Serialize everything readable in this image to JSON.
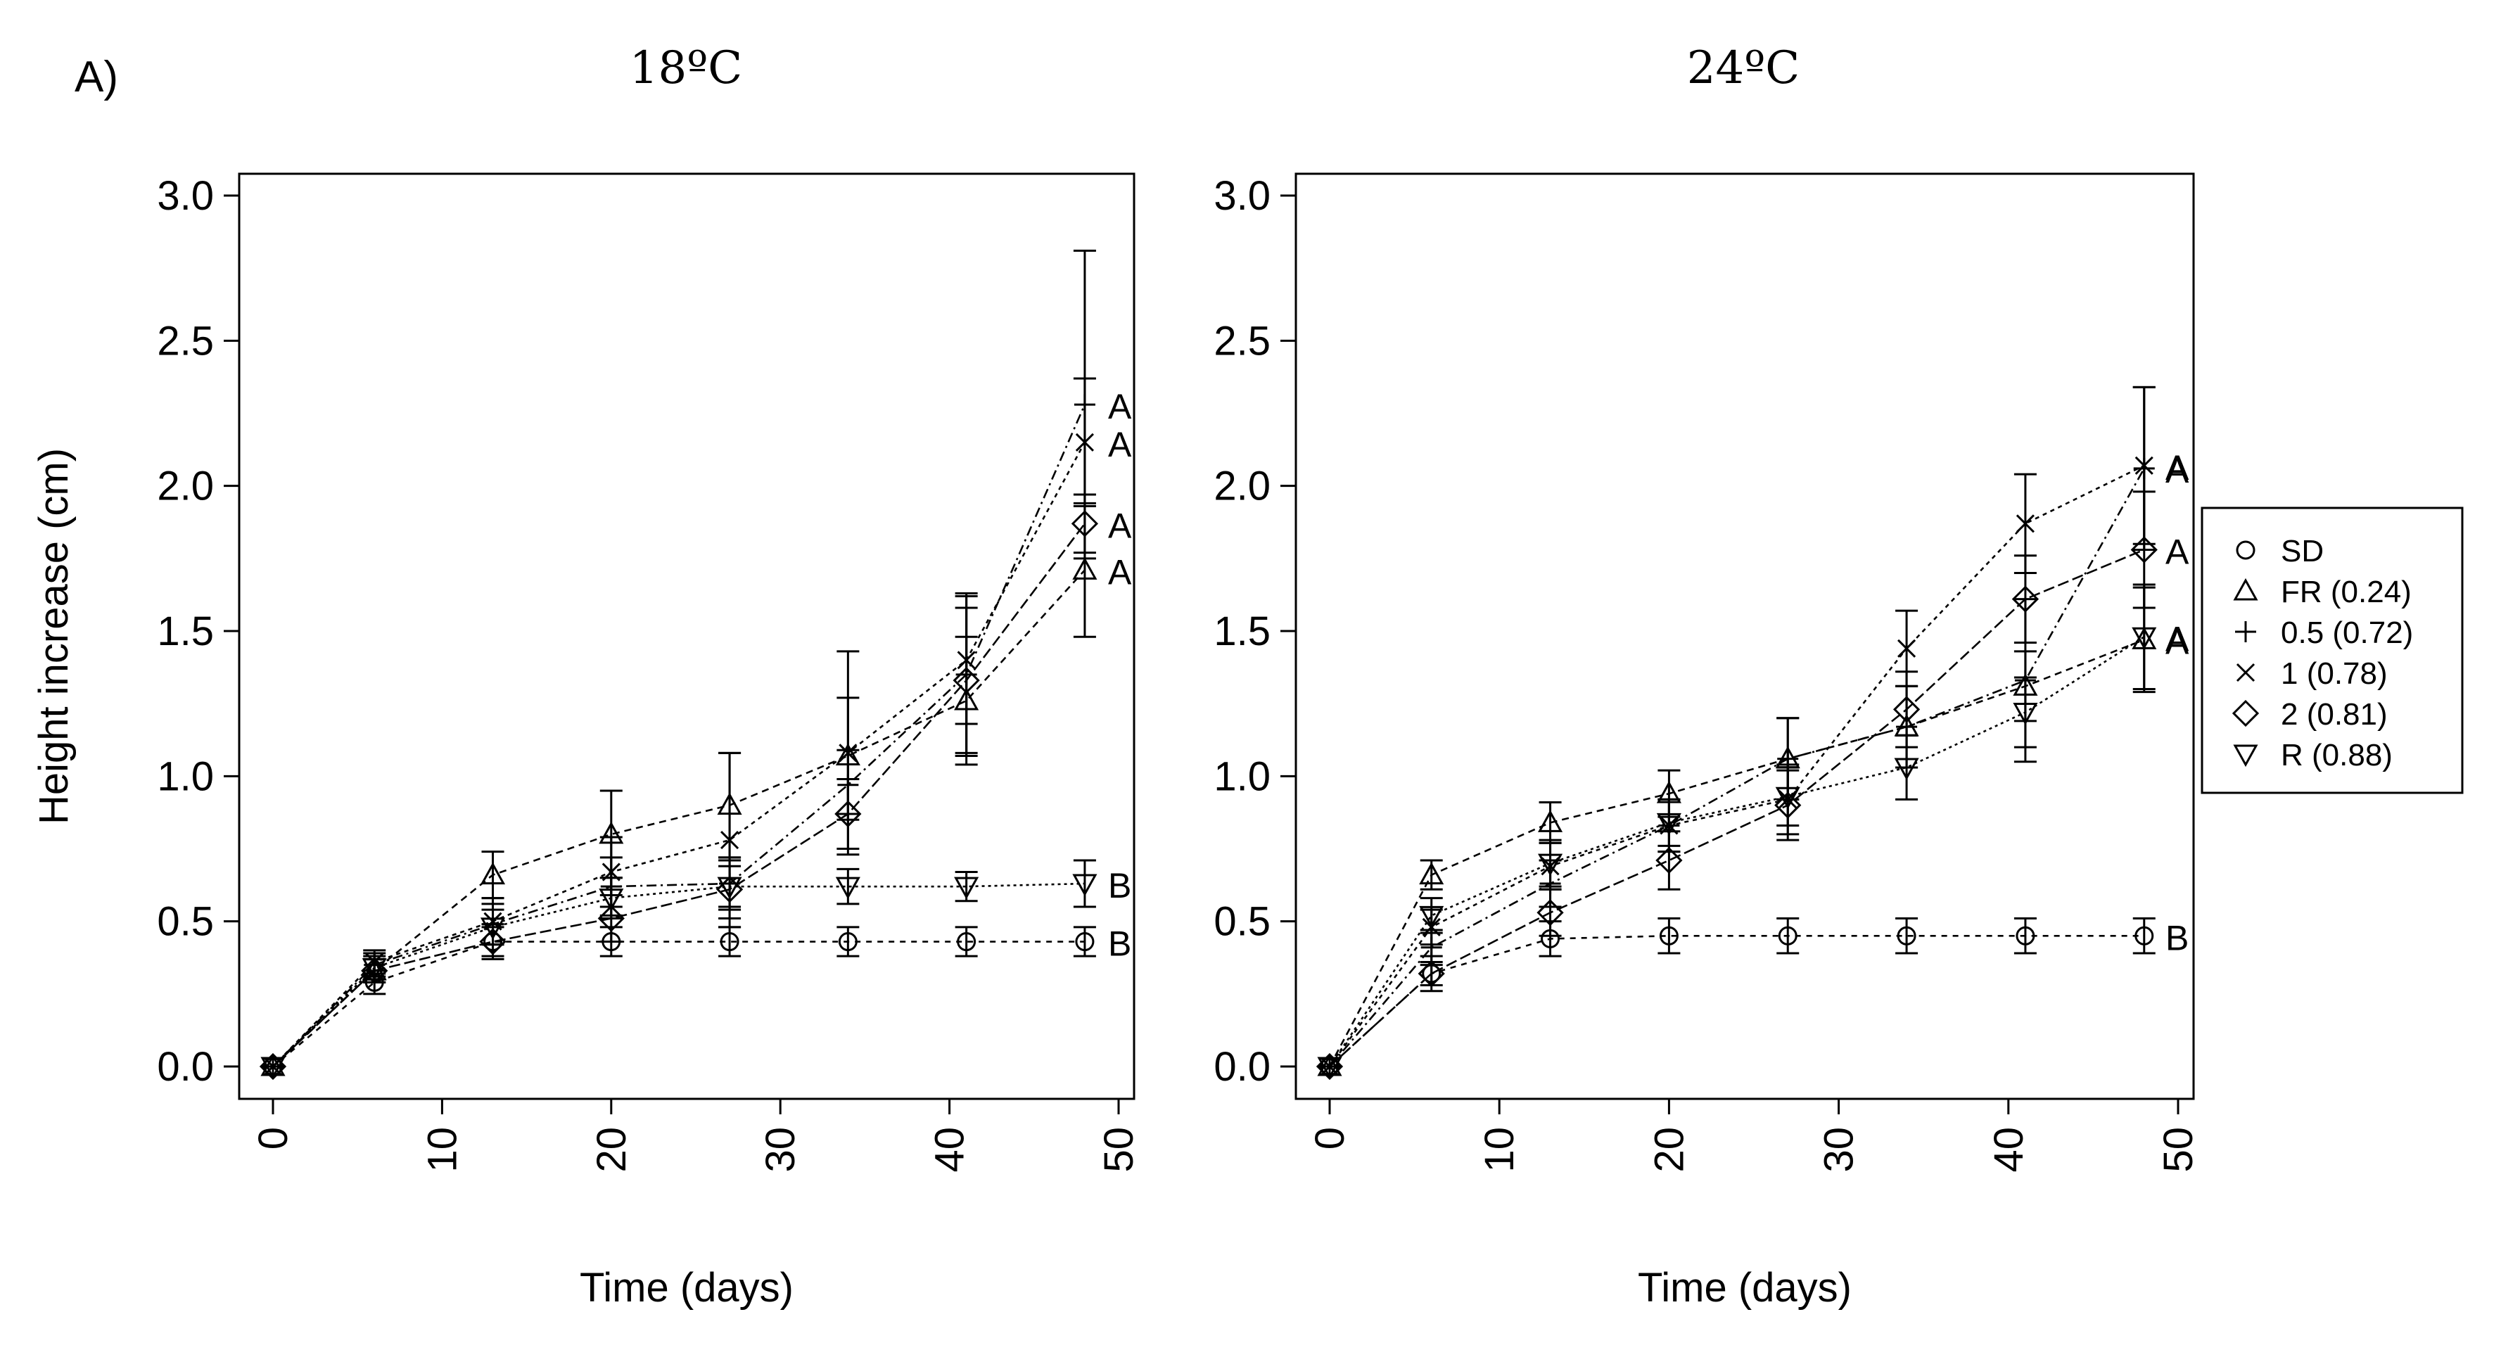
{
  "panel_label": "A)",
  "legend": {
    "entries": [
      {
        "symbol": "circle",
        "label": "SD"
      },
      {
        "symbol": "triangle-up",
        "label": "FR (0.24)"
      },
      {
        "symbol": "plus",
        "label": "0.5 (0.72)"
      },
      {
        "symbol": "x",
        "label": "1 (0.78)"
      },
      {
        "symbol": "diamond",
        "label": "2 (0.81)"
      },
      {
        "symbol": "triangle-down",
        "label": "R (0.88)"
      }
    ]
  },
  "chart_data": [
    {
      "type": "line",
      "title": "18ºC",
      "xlabel": "Time (days)",
      "ylabel": "Height increase (cm)",
      "xlim": [
        0,
        50
      ],
      "ylim": [
        0,
        3
      ],
      "xticks": [
        "0",
        "10",
        "20",
        "30",
        "40",
        "50"
      ],
      "yticks": [
        "0.0",
        "0.5",
        "1.0",
        "1.5",
        "2.0",
        "2.5",
        "3.0"
      ],
      "x": [
        0,
        6,
        13,
        20,
        27,
        34,
        41,
        48
      ],
      "series": [
        {
          "name": "SD",
          "symbol": "circle",
          "values": [
            0,
            0.29,
            0.43,
            0.43,
            0.43,
            0.43,
            0.43,
            0.43
          ],
          "errors": [
            0,
            0.04,
            0.05,
            0.05,
            0.05,
            0.05,
            0.05,
            0.05
          ],
          "letter": "B"
        },
        {
          "name": "FR (0.24)",
          "symbol": "triangle-up",
          "values": [
            0,
            0.33,
            0.66,
            0.8,
            0.9,
            1.07,
            1.26,
            1.71
          ],
          "errors": [
            0,
            0.04,
            0.08,
            0.15,
            0.18,
            0.2,
            0.22,
            0.23
          ],
          "letter": "A"
        },
        {
          "name": "0.5 (0.72)",
          "symbol": "plus",
          "values": [
            0,
            0.35,
            0.49,
            0.62,
            0.63,
            0.97,
            1.35,
            2.28
          ],
          "errors": [
            0,
            0.04,
            0.07,
            0.1,
            0.09,
            0.12,
            0.28,
            0.53
          ],
          "letter": "A"
        },
        {
          "name": "1 (0.78)",
          "symbol": "x",
          "values": [
            0,
            0.36,
            0.5,
            0.67,
            0.78,
            1.08,
            1.4,
            2.15
          ],
          "errors": [
            0,
            0.04,
            0.08,
            0.12,
            0.3,
            0.35,
            0.22,
            0.22
          ],
          "letter": "A"
        },
        {
          "name": "2 (0.81)",
          "symbol": "diamond",
          "values": [
            0,
            0.33,
            0.43,
            0.51,
            0.61,
            0.87,
            1.33,
            1.87
          ],
          "errors": [
            0,
            0.04,
            0.06,
            0.08,
            0.1,
            0.12,
            0.25,
            0.1
          ],
          "letter": "A"
        },
        {
          "name": "R (0.88)",
          "symbol": "triangle-down",
          "values": [
            0,
            0.34,
            0.48,
            0.58,
            0.62,
            0.62,
            0.62,
            0.63
          ],
          "errors": [
            0,
            0.04,
            0.06,
            0.07,
            0.07,
            0.06,
            0.05,
            0.08
          ],
          "letter": "B"
        }
      ]
    },
    {
      "type": "line",
      "title": "24ºC",
      "xlabel": "Time (days)",
      "ylabel": "",
      "xlim": [
        0,
        50
      ],
      "ylim": [
        0,
        3
      ],
      "xticks": [
        "0",
        "10",
        "20",
        "30",
        "40",
        "50"
      ],
      "yticks": [
        "0.0",
        "0.5",
        "1.0",
        "1.5",
        "2.0",
        "2.5",
        "3.0"
      ],
      "x": [
        0,
        6,
        13,
        20,
        27,
        34,
        41,
        48
      ],
      "series": [
        {
          "name": "SD",
          "symbol": "circle",
          "values": [
            0,
            0.32,
            0.44,
            0.45,
            0.45,
            0.45,
            0.45,
            0.45
          ],
          "errors": [
            0,
            0.04,
            0.06,
            0.06,
            0.06,
            0.06,
            0.06,
            0.06
          ],
          "letter": "B"
        },
        {
          "name": "FR (0.24)",
          "symbol": "triangle-up",
          "values": [
            0,
            0.66,
            0.84,
            0.94,
            1.06,
            1.17,
            1.31,
            1.47
          ],
          "errors": [
            0,
            0.05,
            0.07,
            0.08,
            0.14,
            0.14,
            0.12,
            0.18
          ],
          "letter": "A"
        },
        {
          "name": "0.5 (0.72)",
          "symbol": "plus",
          "values": [
            0,
            0.41,
            0.63,
            0.83,
            1.06,
            1.17,
            1.33,
            2.06
          ],
          "errors": [
            0,
            0.06,
            0.08,
            0.09,
            0.14,
            0.14,
            0.28,
            0.28
          ],
          "letter": "A"
        },
        {
          "name": "1 (0.78)",
          "symbol": "x",
          "values": [
            0,
            0.48,
            0.69,
            0.83,
            0.92,
            1.44,
            1.87,
            2.07
          ],
          "errors": [
            0,
            0.06,
            0.08,
            0.09,
            0.12,
            0.13,
            0.17,
            0.27
          ],
          "letter": "A"
        },
        {
          "name": "2 (0.81)",
          "symbol": "diamond",
          "values": [
            0,
            0.32,
            0.53,
            0.71,
            0.9,
            1.23,
            1.61,
            1.78
          ],
          "errors": [
            0,
            0.06,
            0.08,
            0.1,
            0.12,
            0.13,
            0.15,
            0.2
          ],
          "letter": "A"
        },
        {
          "name": "R (0.88)",
          "symbol": "triangle-down",
          "values": [
            0,
            0.52,
            0.7,
            0.84,
            0.93,
            1.03,
            1.22,
            1.48
          ],
          "errors": [
            0,
            0.06,
            0.08,
            0.08,
            0.1,
            0.11,
            0.12,
            0.18
          ],
          "letter": "A"
        }
      ]
    }
  ]
}
